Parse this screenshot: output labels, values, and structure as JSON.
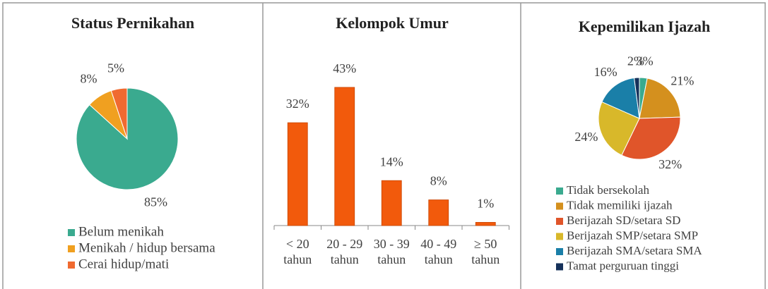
{
  "chart_data": [
    {
      "type": "pie",
      "title": "Status Pernikahan",
      "categories": [
        "Belum menikah",
        "Menikah / hidup bersama",
        "Cerai hidup/mati"
      ],
      "values": [
        85,
        8,
        5
      ],
      "value_labels": [
        "85%",
        "8%",
        "5%"
      ],
      "colors": [
        "#3aaa8f",
        "#f0a020",
        "#f06a30"
      ]
    },
    {
      "type": "bar",
      "title": "Kelompok Umur",
      "categories": [
        "< 20 tahun",
        "20 - 29 tahun",
        "30 - 39 tahun",
        "40 - 49 tahun",
        "≥ 50 tahun"
      ],
      "values": [
        32,
        43,
        14,
        8,
        1
      ],
      "value_labels": [
        "32%",
        "43%",
        "14%",
        "8%",
        "1%"
      ],
      "color": "#f25a0c"
    },
    {
      "type": "pie",
      "title": "Kepemilikan Ijazah",
      "categories": [
        "Tidak bersekolah",
        "Tidak memiliki ijazah",
        "Berijazah SD/setara SD",
        "Berijazah SMP/setara SMP",
        "Berijazah SMA/setara SMA",
        "Tamat perguruan tinggi"
      ],
      "values": [
        3,
        21,
        32,
        24,
        16,
        2
      ],
      "value_labels": [
        "3%",
        "21%",
        "32%",
        "24%",
        "16%",
        "2%"
      ],
      "colors": [
        "#3aaa8f",
        "#d4901e",
        "#e0552a",
        "#d8b82a",
        "#1a7fa8",
        "#15305a"
      ]
    }
  ]
}
